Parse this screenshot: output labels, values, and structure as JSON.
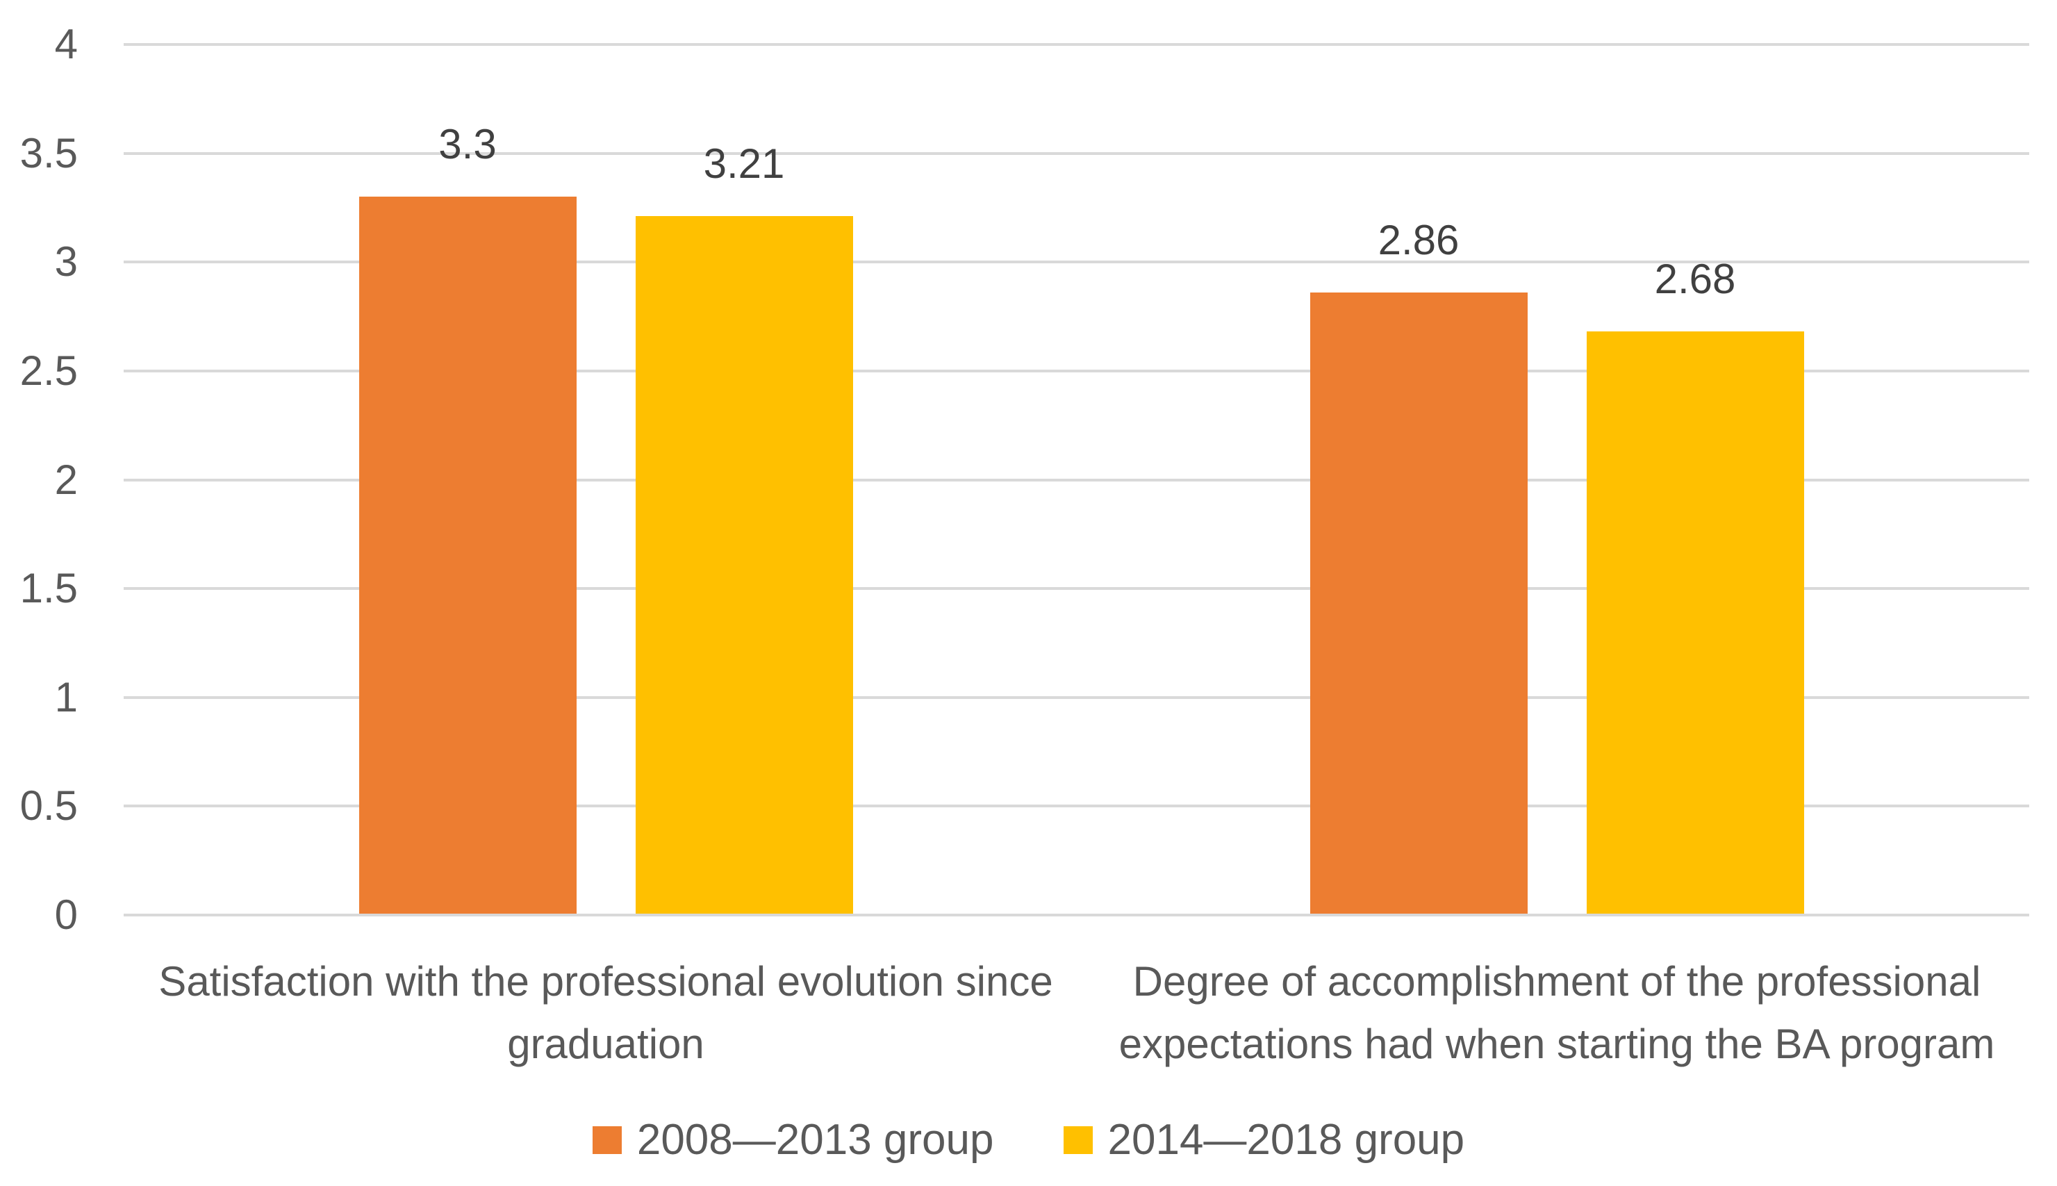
{
  "chart_data": {
    "type": "bar",
    "title": "",
    "xlabel": "",
    "ylabel": "",
    "categories": [
      "Satisfaction with the professional evolution since graduation",
      "Degree of accomplishment of the professional expectations had when starting the BA program"
    ],
    "series": [
      {
        "name": "2008—2013 group",
        "color": "#ED7D31",
        "values": [
          3.3,
          2.86
        ],
        "data_labels": [
          "3.3",
          "2.86"
        ]
      },
      {
        "name": "2014—2018 group",
        "color": "#FFC000",
        "values": [
          3.21,
          2.68
        ],
        "data_labels": [
          "3.21",
          "2.68"
        ]
      }
    ],
    "ylim": [
      0,
      4
    ],
    "ytick_step": 0.5,
    "yticks": [
      "0",
      "0.5",
      "1",
      "1.5",
      "2",
      "2.5",
      "3",
      "3.5",
      "4"
    ],
    "grid": true,
    "legend_position": "bottom",
    "colors": {
      "gridline": "#D9D9D9",
      "axis_text": "#595959",
      "category_text": "#595959",
      "data_label_text": "#404040",
      "background": "#FFFFFF"
    }
  }
}
